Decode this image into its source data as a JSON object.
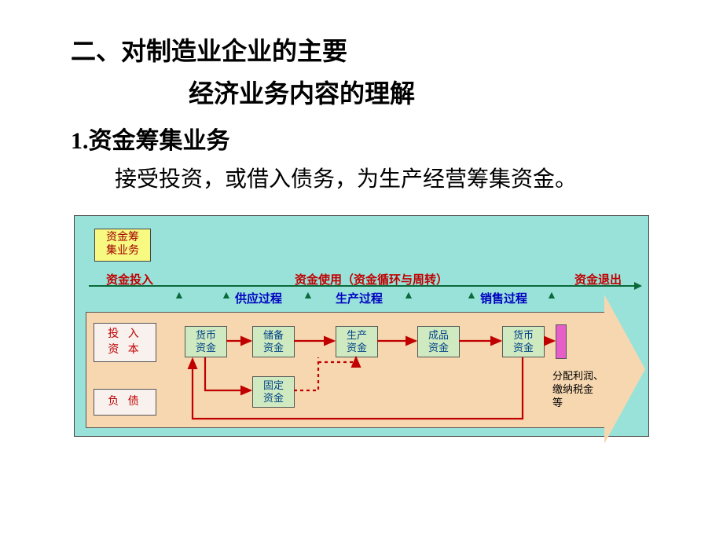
{
  "title": {
    "line1": "二、对制造业企业的主要",
    "line2": "经济业务内容的理解"
  },
  "subheading": "1.资金筹集业务",
  "body": "接受投资，或借入债务，为生产经营筹集资金。",
  "diagram": {
    "type": "flowchart",
    "background_color": "#98e2da",
    "panel_color": "#f7d7b0",
    "box_border_color": "#555555",
    "tag": {
      "text": "资金筹\n集业务",
      "bg": "#f8f980",
      "color": "#a00000",
      "fontsize": 14
    },
    "top_labels": {
      "invest_in": {
        "text": "资金投入",
        "color": "#c00000"
      },
      "use": {
        "text": "资金使用（资金循环与周转）",
        "color": "#c00000"
      },
      "exit": {
        "text": "资金退出",
        "color": "#c00000"
      }
    },
    "top_arrow_color": "#0a6a3a",
    "processes": {
      "supply": "供应过程",
      "produce": "生产过程",
      "sale": "销售过程",
      "color": "#0000c0",
      "marker": "▲",
      "marker_color": "#0a6a3a"
    },
    "left_boxes": {
      "invest": "投 入\n资 本",
      "debt": "负 债",
      "bg": "#f8f1ee",
      "color": "#c00000"
    },
    "green_boxes": {
      "bg": "#cfe9c0",
      "color": "#004488",
      "money1": "货币\n资金",
      "reserve": "储备\n资金",
      "prod": "生产\n资金",
      "finish": "成品\n资金",
      "money2": "货币\n资金",
      "fixed": "固定\n资金"
    },
    "pink_bar_color": "#e65fc9",
    "exit_note": "分配利润、\n缴纳税金\n等",
    "arrows": {
      "solid_color": "#c00000",
      "dashed_color": "#c00000",
      "edges": [
        {
          "from": "money1",
          "to": "reserve",
          "style": "solid"
        },
        {
          "from": "reserve",
          "to": "prod",
          "style": "solid"
        },
        {
          "from": "prod",
          "to": "finish",
          "style": "solid"
        },
        {
          "from": "finish",
          "to": "money2",
          "style": "solid"
        },
        {
          "from": "money2",
          "to": "pink",
          "style": "solid"
        },
        {
          "from": "money1",
          "to": "fixed",
          "style": "solid-elbow"
        },
        {
          "from": "fixed",
          "to": "prod",
          "style": "dashed-elbow-up"
        },
        {
          "from": "money2",
          "to": "money1",
          "style": "solid-loop-bottom"
        }
      ]
    }
  },
  "colors": {
    "page_bg": "#ffffff",
    "text": "#000000"
  },
  "fonts": {
    "title_size": 32,
    "sub_size": 30,
    "body_size": 28,
    "diagram_label_size": 14
  }
}
